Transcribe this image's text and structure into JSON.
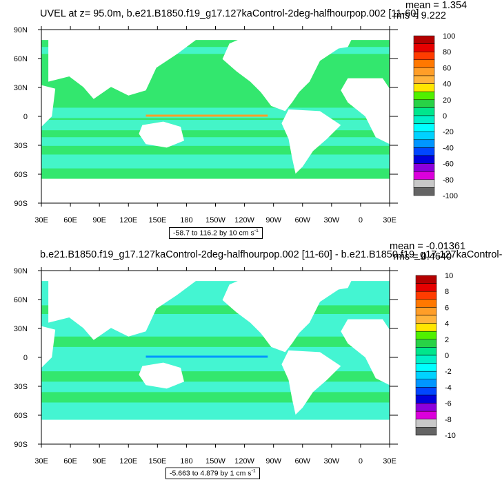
{
  "panels": [
    {
      "title": "UVEL at z=  95.0m, b.e21.B1850.f19_g17.127kaControl-2deg-halfhourpop.002 [11-60]",
      "mean_text": "mean = 1.354",
      "rms_text": "rms = 9.222",
      "range_text": "-58.7 to 116.2 by 10 cm s",
      "range_superscript": "-1",
      "lon_labels": [
        "30E",
        "60E",
        "90E",
        "120E",
        "150E",
        "180",
        "150W",
        "120W",
        "90W",
        "60W",
        "30W",
        "0",
        "30E"
      ],
      "lat_labels": [
        "90N",
        "60N",
        "30N",
        "0",
        "30S",
        "60S",
        "90S"
      ],
      "colorbar": {
        "labels": [
          "100",
          "80",
          "60",
          "40",
          "20",
          "0",
          "-20",
          "-40",
          "-60",
          "-80",
          "-100"
        ],
        "colors": [
          "#b40000",
          "#e60000",
          "#ff3c00",
          "#ff7800",
          "#ff9e28",
          "#ffb33c",
          "#ffe600",
          "#50f000",
          "#28d246",
          "#00e68c",
          "#00f0c8",
          "#00ffff",
          "#00d2ff",
          "#0096ff",
          "#0046ff",
          "#0000dc",
          "#8c00dc",
          "#dc00dc",
          "#c8c8c8",
          "#646464"
        ]
      },
      "ocean_color": "#33e76e",
      "band_color": "#44f5c8"
    },
    {
      "title": "b.e21.B1850.f19_g17.127kaControl-2deg-halfhourpop.002 [11-60] - b.e21.B1850.f19_g17.127kaControl-",
      "mean_text": "mean = -0.01361",
      "rms_text": "rms = 0.4640",
      "range_text": "-5.663 to 4.879 by 1 cm s",
      "range_superscript": "-1",
      "lon_labels": [
        "30E",
        "60E",
        "90E",
        "120E",
        "150E",
        "180",
        "150W",
        "120W",
        "90W",
        "60W",
        "30W",
        "0",
        "30E"
      ],
      "lat_labels": [
        "90N",
        "60N",
        "30N",
        "0",
        "30S",
        "60S",
        "90S"
      ],
      "colorbar": {
        "labels": [
          "10",
          "8",
          "6",
          "4",
          "2",
          "0",
          "-2",
          "-4",
          "-6",
          "-8",
          "-10"
        ],
        "colors": [
          "#b40000",
          "#e60000",
          "#ff3c00",
          "#ff7800",
          "#ff9e28",
          "#ffb33c",
          "#ffe600",
          "#50f000",
          "#28d246",
          "#00e68c",
          "#00f0c8",
          "#00ffff",
          "#00d2ff",
          "#0096ff",
          "#0046ff",
          "#0000dc",
          "#8c00dc",
          "#dc00dc",
          "#c8c8c8",
          "#646464"
        ]
      },
      "ocean_color": "#44f5d2",
      "band_color": "#33e76e"
    }
  ]
}
